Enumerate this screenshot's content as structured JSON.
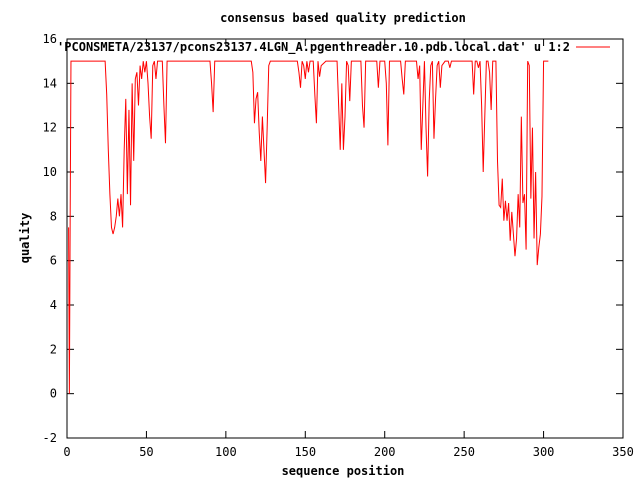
{
  "chart_data": {
    "type": "line",
    "title": "consensus based quality prediction",
    "xlabel": "sequence position",
    "ylabel": "quality",
    "xlim": [
      0,
      350
    ],
    "ylim": [
      -2,
      16
    ],
    "xticks": [
      0,
      50,
      100,
      150,
      200,
      250,
      300,
      350
    ],
    "yticks": [
      -2,
      0,
      2,
      4,
      6,
      8,
      10,
      12,
      14,
      16
    ],
    "grid": false,
    "legend_position": "top-right",
    "series": [
      {
        "name": "'PCONSMETA/23137/pcons23137.4LGN_A.pgenthreader.10.pdb.local.dat' u 1:2",
        "color": "#ff0000",
        "points": [
          [
            1,
            7.5
          ],
          [
            1.5,
            0
          ],
          [
            2,
            8
          ],
          [
            2.5,
            15
          ],
          [
            10,
            15
          ],
          [
            20,
            15
          ],
          [
            24,
            15
          ],
          [
            25,
            13.5
          ],
          [
            26,
            11
          ],
          [
            27,
            9
          ],
          [
            28,
            7.5
          ],
          [
            29,
            7.2
          ],
          [
            30,
            7.5
          ],
          [
            31,
            8
          ],
          [
            32,
            8.8
          ],
          [
            33,
            8
          ],
          [
            34,
            9
          ],
          [
            35,
            7.5
          ],
          [
            36,
            11
          ],
          [
            37,
            13.3
          ],
          [
            38,
            9
          ],
          [
            39,
            12.8
          ],
          [
            40,
            8.5
          ],
          [
            41,
            14
          ],
          [
            42,
            10.5
          ],
          [
            43,
            14.2
          ],
          [
            44,
            14.5
          ],
          [
            45,
            13
          ],
          [
            46,
            14.8
          ],
          [
            47,
            14.2
          ],
          [
            48,
            15
          ],
          [
            49,
            14.5
          ],
          [
            50,
            15
          ],
          [
            51,
            14
          ],
          [
            52,
            12.5
          ],
          [
            53,
            11.5
          ],
          [
            54,
            14.8
          ],
          [
            55,
            15
          ],
          [
            56,
            14.2
          ],
          [
            57,
            15
          ],
          [
            60,
            15
          ],
          [
            61,
            13
          ],
          [
            62,
            11.3
          ],
          [
            63,
            15
          ],
          [
            70,
            15
          ],
          [
            80,
            15
          ],
          [
            90,
            15
          ],
          [
            91,
            14
          ],
          [
            92,
            12.7
          ],
          [
            93,
            15
          ],
          [
            100,
            15
          ],
          [
            110,
            15
          ],
          [
            116,
            15
          ],
          [
            117,
            14.5
          ],
          [
            118,
            12.2
          ],
          [
            119,
            13.3
          ],
          [
            120,
            13.6
          ],
          [
            121,
            11.8
          ],
          [
            122,
            10.5
          ],
          [
            123,
            12.5
          ],
          [
            124,
            11
          ],
          [
            125,
            9.5
          ],
          [
            126,
            12
          ],
          [
            127,
            14.8
          ],
          [
            128,
            15
          ],
          [
            140,
            15
          ],
          [
            145,
            15
          ],
          [
            146,
            14.5
          ],
          [
            147,
            13.8
          ],
          [
            148,
            15
          ],
          [
            149,
            14.8
          ],
          [
            150,
            14.2
          ],
          [
            151,
            15
          ],
          [
            152,
            14.5
          ],
          [
            153,
            15
          ],
          [
            155,
            15
          ],
          [
            156,
            13.5
          ],
          [
            157,
            12.2
          ],
          [
            158,
            15
          ],
          [
            159,
            14.3
          ],
          [
            160,
            14.8
          ],
          [
            163,
            15
          ],
          [
            170,
            15
          ],
          [
            171,
            13
          ],
          [
            172,
            11
          ],
          [
            173,
            14
          ],
          [
            174,
            11
          ],
          [
            175,
            12.5
          ],
          [
            176,
            15
          ],
          [
            177,
            14.8
          ],
          [
            178,
            13.2
          ],
          [
            179,
            15
          ],
          [
            185,
            15
          ],
          [
            186,
            13
          ],
          [
            187,
            12
          ],
          [
            188,
            15
          ],
          [
            190,
            15
          ],
          [
            195,
            15
          ],
          [
            196,
            13.8
          ],
          [
            197,
            15
          ],
          [
            200,
            15
          ],
          [
            201,
            14
          ],
          [
            202,
            11.2
          ],
          [
            203,
            15
          ],
          [
            210,
            15
          ],
          [
            211,
            14.2
          ],
          [
            212,
            13.5
          ],
          [
            213,
            15
          ],
          [
            220,
            15
          ],
          [
            221,
            14.2
          ],
          [
            222,
            14.8
          ],
          [
            223,
            11
          ],
          [
            224,
            13
          ],
          [
            225,
            15
          ],
          [
            226,
            12
          ],
          [
            227,
            9.8
          ],
          [
            228,
            13.2
          ],
          [
            229,
            14.8
          ],
          [
            230,
            15
          ],
          [
            231,
            11.5
          ],
          [
            232,
            13.3
          ],
          [
            233,
            14.8
          ],
          [
            234,
            15
          ],
          [
            235,
            13.8
          ],
          [
            236,
            14.8
          ],
          [
            238,
            15
          ],
          [
            240,
            15
          ],
          [
            241,
            14.7
          ],
          [
            242,
            15
          ],
          [
            245,
            15
          ],
          [
            250,
            15
          ],
          [
            255,
            15
          ],
          [
            256,
            13.5
          ],
          [
            257,
            15
          ],
          [
            258,
            15
          ],
          [
            259,
            14.7
          ],
          [
            260,
            15
          ],
          [
            261,
            13
          ],
          [
            262,
            10
          ],
          [
            263,
            12.5
          ],
          [
            264,
            15
          ],
          [
            265,
            15
          ],
          [
            266,
            14.5
          ],
          [
            267,
            12.8
          ],
          [
            268,
            15
          ],
          [
            270,
            15
          ],
          [
            271,
            10.5
          ],
          [
            272,
            8.5
          ],
          [
            273,
            8.4
          ],
          [
            274,
            9.7
          ],
          [
            275,
            7.8
          ],
          [
            276,
            8.7
          ],
          [
            277,
            7.8
          ],
          [
            278,
            8.6
          ],
          [
            279,
            6.9
          ],
          [
            280,
            8.2
          ],
          [
            281,
            7.2
          ],
          [
            282,
            6.2
          ],
          [
            283,
            7
          ],
          [
            284,
            9
          ],
          [
            285,
            7.5
          ],
          [
            286,
            12.5
          ],
          [
            287,
            8.6
          ],
          [
            288,
            9
          ],
          [
            289,
            6.5
          ],
          [
            290,
            15
          ],
          [
            291,
            14.8
          ],
          [
            292,
            8.8
          ],
          [
            293,
            12
          ],
          [
            294,
            7
          ],
          [
            295,
            10
          ],
          [
            296,
            5.8
          ],
          [
            297,
            6.6
          ],
          [
            298,
            7.2
          ],
          [
            299,
            8.9
          ],
          [
            300,
            15
          ],
          [
            303,
            15
          ]
        ]
      }
    ]
  }
}
